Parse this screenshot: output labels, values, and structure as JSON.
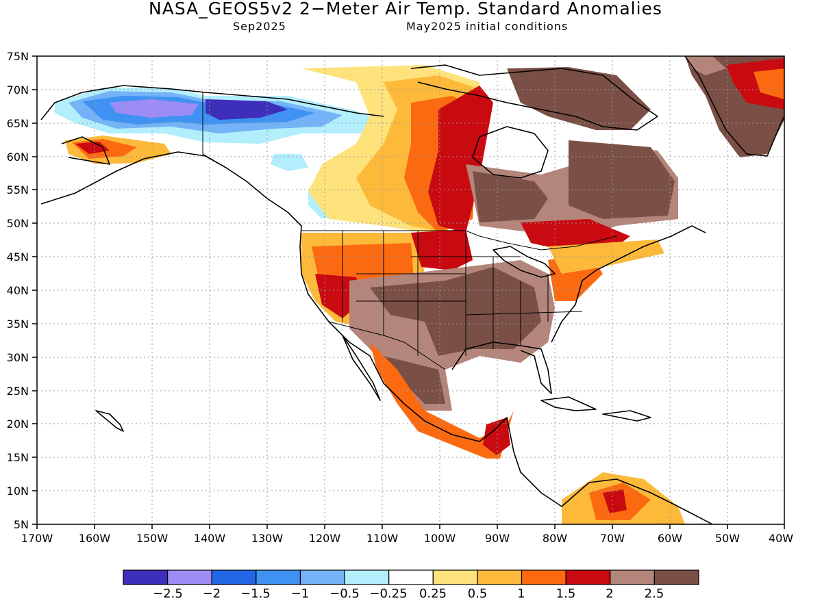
{
  "title": "NASA_GEOS5v2 2−Meter Air Temp. Standard Anomalies",
  "subtitle_left": "Sep2025",
  "subtitle_right": "May2025 initial conditions",
  "lat_labels": [
    "75N",
    "70N",
    "65N",
    "60N",
    "55N",
    "50N",
    "45N",
    "40N",
    "35N",
    "30N",
    "25N",
    "20N",
    "15N",
    "10N",
    "5N"
  ],
  "lon_labels": [
    "170W",
    "160W",
    "150W",
    "140W",
    "130W",
    "120W",
    "110W",
    "100W",
    "90W",
    "80W",
    "70W",
    "60W",
    "50W",
    "40W"
  ],
  "colorbar": {
    "colors": [
      "#3d2fb9",
      "#9d8cf5",
      "#2366e6",
      "#3f92f2",
      "#74b3f7",
      "#b2eefc",
      "#ffffff",
      "#fee27c",
      "#fdba3a",
      "#fb6a11",
      "#c90a10",
      "#b4857b",
      "#7a4f45"
    ],
    "labels": [
      "−2.5",
      "−2",
      "−1.5",
      "−1",
      "−0.5",
      "−0.25",
      "0.25",
      "0.5",
      "1",
      "1.5",
      "2",
      "2.5"
    ]
  }
}
